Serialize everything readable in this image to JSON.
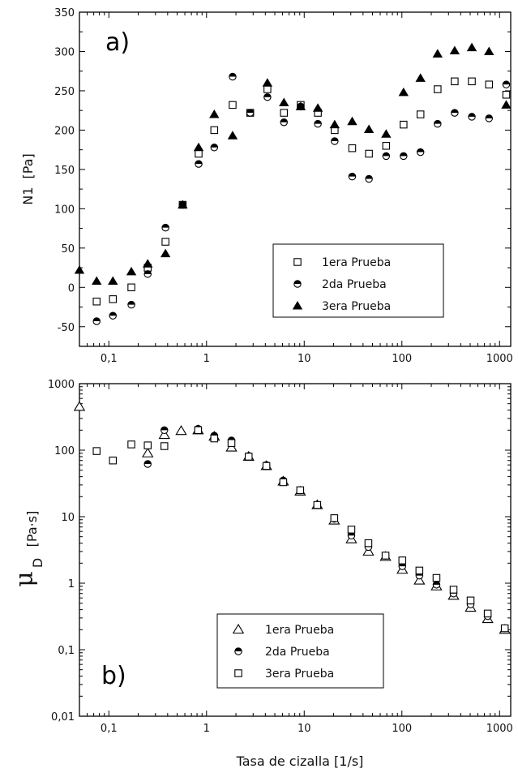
{
  "figure": {
    "xlabel": "Tasa de cizalla [1/s]"
  },
  "chart_data": [
    {
      "type": "scatter",
      "panel_label": "a)",
      "ylabel": "N1  [Pa]",
      "xscale": "log",
      "xlim": [
        0.05,
        1300
      ],
      "ylim": [
        -75,
        350
      ],
      "x_tick_labels": [
        "0,1",
        "1",
        "10",
        "100",
        "1000"
      ],
      "y_tick_labels": [
        "-50",
        "0",
        "50",
        "100",
        "150",
        "200",
        "250",
        "300",
        "350"
      ],
      "legend_position": "lower-right",
      "series": [
        {
          "name": "1era Prueba",
          "marker": "open-square",
          "x": [
            0.075,
            0.11,
            0.17,
            0.25,
            0.38,
            0.57,
            0.83,
            1.2,
            1.85,
            2.8,
            4.2,
            6.2,
            9.2,
            13.8,
            20.5,
            31,
            46,
            69,
            104,
            155,
            232,
            347,
            520,
            780,
            1170
          ],
          "y": [
            -18,
            -15,
            0,
            25,
            58,
            105,
            170,
            200,
            232,
            222,
            252,
            222,
            232,
            222,
            200,
            177,
            170,
            180,
            207,
            220,
            252,
            262,
            262,
            258,
            245
          ]
        },
        {
          "name": "2da Prueba",
          "marker": "filled-circle",
          "x": [
            0.075,
            0.11,
            0.17,
            0.25,
            0.38,
            0.57,
            0.83,
            1.2,
            1.85,
            2.8,
            4.2,
            6.2,
            9.2,
            13.8,
            20.5,
            31,
            46,
            69,
            104,
            155,
            232,
            347,
            520,
            780,
            1170
          ],
          "y": [
            -43,
            -36,
            -22,
            17,
            76,
            105,
            157,
            178,
            268,
            222,
            242,
            210,
            230,
            208,
            186,
            141,
            138,
            167,
            167,
            172,
            208,
            222,
            217,
            215,
            258
          ]
        },
        {
          "name": "3era Prueba",
          "marker": "filled-triangle",
          "x": [
            0.05,
            0.075,
            0.11,
            0.17,
            0.25,
            0.38,
            0.57,
            0.83,
            1.2,
            1.85,
            4.2,
            6.2,
            9.2,
            13.8,
            20.5,
            31,
            46,
            69,
            104,
            155,
            232,
            347,
            520,
            780,
            1170
          ],
          "y": [
            22,
            8,
            8,
            20,
            30,
            43,
            105,
            178,
            220,
            193,
            260,
            235,
            230,
            228,
            207,
            211,
            201,
            195,
            248,
            266,
            297,
            301,
            305,
            300,
            232
          ]
        }
      ]
    },
    {
      "type": "scatter",
      "panel_label": "b)",
      "ylabel_symbol": "μ",
      "ylabel_subscript": "D",
      "ylabel_unit": "[Pa·s]",
      "xscale": "log",
      "yscale": "log",
      "xlim": [
        0.05,
        1300
      ],
      "ylim": [
        0.01,
        1000
      ],
      "x_tick_labels": [
        "0,1",
        "1",
        "10",
        "100",
        "1000"
      ],
      "y_tick_labels": [
        "0,01",
        "0,1",
        "1",
        "10",
        "100",
        "1000"
      ],
      "legend_position": "lower-center",
      "series": [
        {
          "name": "1era Prueba",
          "marker": "open-triangle",
          "x": [
            0.05,
            0.25,
            0.37,
            0.55,
            0.82,
            1.2,
            1.8,
            2.7,
            4.1,
            6.1,
            9.1,
            13.6,
            20.3,
            30.4,
            45.4,
            68,
            101,
            151,
            226,
            338,
            505,
            756,
            1130
          ],
          "y": [
            450,
            90,
            170,
            195,
            200,
            160,
            110,
            80,
            58,
            34,
            24,
            15,
            8.8,
            4.6,
            3.0,
            2.5,
            1.6,
            1.1,
            0.9,
            0.65,
            0.43,
            0.29,
            0.2
          ]
        },
        {
          "name": "2da Prueba",
          "marker": "filled-circle",
          "x": [
            0.25,
            0.37,
            0.82,
            1.2,
            1.8,
            2.7,
            4.1,
            6.1,
            9.1,
            13.6,
            20.3,
            30.4,
            45.4,
            68,
            101,
            151,
            226,
            338,
            505,
            756,
            1130
          ],
          "y": [
            62,
            200,
            210,
            165,
            140,
            82,
            60,
            35,
            25,
            15,
            9.3,
            5.2,
            3.5,
            2.6,
            1.8,
            1.3,
            0.95,
            0.7,
            0.48,
            0.32,
            0.21
          ]
        },
        {
          "name": "3era Prueba",
          "marker": "open-square",
          "x": [
            0.075,
            0.11,
            0.17,
            0.25,
            0.37,
            0.82,
            1.2,
            1.8,
            2.7,
            4.1,
            6.1,
            9.1,
            13.6,
            20.3,
            30.4,
            45.4,
            68,
            101,
            151,
            226,
            338,
            505,
            756,
            1130
          ],
          "y": [
            97,
            70,
            122,
            118,
            115,
            200,
            150,
            128,
            80,
            58,
            33,
            25,
            15,
            9.5,
            6.4,
            4.0,
            2.6,
            2.2,
            1.55,
            1.2,
            0.8,
            0.55,
            0.35,
            0.21
          ]
        }
      ]
    }
  ]
}
